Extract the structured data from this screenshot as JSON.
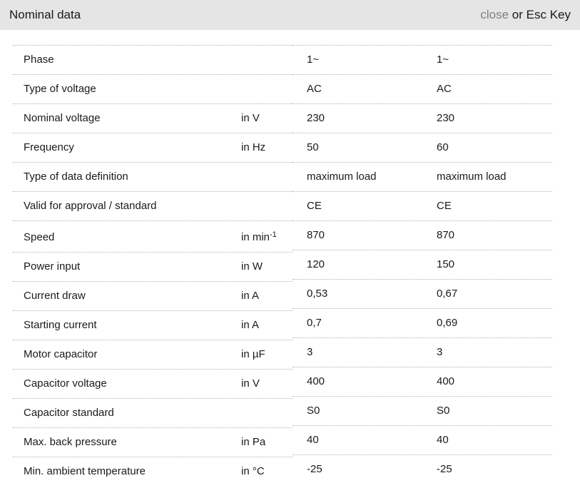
{
  "header": {
    "title": "Nominal data",
    "close_label": "close",
    "close_hint": " or Esc Key"
  },
  "colors": {
    "header_background": "#e5e5e5",
    "close_link": "#7f7f7f",
    "text": "#1a1a1a",
    "row_divider": "#b3b3b3",
    "page_background": "#ffffff"
  },
  "table": {
    "rows": [
      {
        "label": "Phase",
        "unit": "",
        "values": [
          "1~",
          "1~"
        ]
      },
      {
        "label": "Type of voltage",
        "unit": "",
        "values": [
          "AC",
          "AC"
        ]
      },
      {
        "label": "Nominal voltage",
        "unit": "in V",
        "values": [
          "230",
          "230"
        ]
      },
      {
        "label": "Frequency",
        "unit": "in Hz",
        "values": [
          "50",
          "60"
        ]
      },
      {
        "label": "Type of data definition",
        "unit": "",
        "values": [
          "maximum load",
          "maximum load"
        ]
      },
      {
        "label": "Valid for approval / standard",
        "unit": "",
        "values": [
          "CE",
          "CE"
        ]
      },
      {
        "label": "Speed",
        "unit": "in min",
        "unit_sup": "-1",
        "values": [
          "870",
          "870"
        ]
      },
      {
        "label": "Power input",
        "unit": "in W",
        "values": [
          "120",
          "150"
        ]
      },
      {
        "label": "Current draw",
        "unit": "in A",
        "values": [
          "0,53",
          "0,67"
        ]
      },
      {
        "label": "Starting current",
        "unit": "in A",
        "values": [
          "0,7",
          "0,69"
        ]
      },
      {
        "label": "Motor capacitor",
        "unit": "in µF",
        "values": [
          "3",
          "3"
        ]
      },
      {
        "label": "Capacitor voltage",
        "unit": "in V",
        "values": [
          "400",
          "400"
        ]
      },
      {
        "label": "Capacitor standard",
        "unit": "",
        "values": [
          "S0",
          "S0"
        ]
      },
      {
        "label": "Max. back pressure",
        "unit": "in Pa",
        "values": [
          "40",
          "40"
        ]
      },
      {
        "label": "Min. ambient temperature",
        "unit": "in °C",
        "values": [
          "-25",
          "-25"
        ]
      }
    ]
  }
}
